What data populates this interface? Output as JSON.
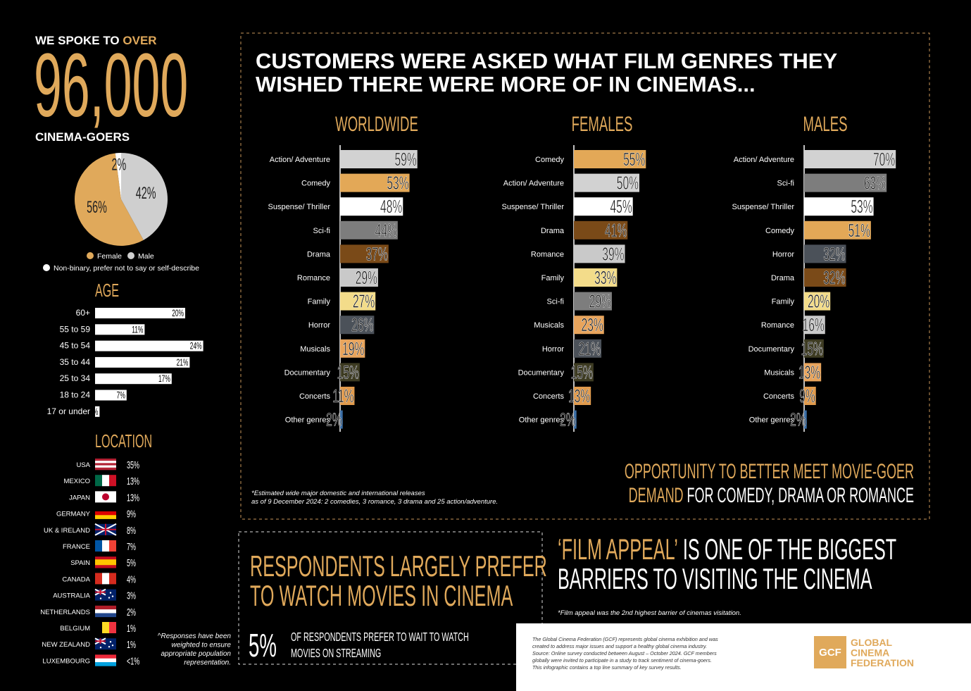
{
  "intro": {
    "lead": "WE SPOKE TO",
    "lead_accent": "OVER",
    "count": "96,000",
    "subject": "CINEMA-GOERS"
  },
  "gender": {
    "type": "pie",
    "categories": [
      "Female",
      "Male",
      "Non-binary, prefer not to say or self-describe"
    ],
    "values": [
      56,
      42,
      2
    ],
    "value_labels": [
      "56%",
      "42%",
      "2%"
    ],
    "colors": [
      "#e0a95b",
      "#cfcfcf",
      "#ffffff"
    ]
  },
  "age": {
    "type": "bar",
    "title": "AGE",
    "categories": [
      "60+",
      "55 to 59",
      "45 to 54",
      "35 to 44",
      "25 to 34",
      "18 to 24",
      "17 or under"
    ],
    "values": [
      20,
      11,
      24,
      21,
      17,
      7,
      1
    ],
    "value_labels": [
      "20%",
      "11%",
      "24%",
      "21%",
      "17%",
      "7%",
      "1%"
    ],
    "color": "#ffffff"
  },
  "location": {
    "title": "LOCATION",
    "rows": [
      [
        "USA",
        "35%"
      ],
      [
        "MEXICO",
        "13%"
      ],
      [
        "JAPAN",
        "13%"
      ],
      [
        "GERMANY",
        "9%"
      ],
      [
        "UK & IRELAND",
        "8%"
      ],
      [
        "FRANCE",
        "7%"
      ],
      [
        "SPAIN",
        "5%"
      ],
      [
        "CANADA",
        "4%"
      ],
      [
        "AUSTRALIA",
        "3%"
      ],
      [
        "NETHERLANDS",
        "2%"
      ],
      [
        "BELGIUM",
        "1%"
      ],
      [
        "NEW ZEALAND",
        "1%"
      ],
      [
        "LUXEMBOURG",
        "<1%"
      ]
    ],
    "note_lines": [
      "^Responses have been",
      "weighted to ensure",
      "appropriate population",
      "representation."
    ]
  },
  "genres": {
    "title_lines": [
      "CUSTOMERS WERE ASKED WHAT FILM GENRES THEY",
      "WISHED THERE WERE MORE OF IN CINEMAS..."
    ],
    "panels": [
      {
        "type": "bar",
        "title": "WORLDWIDE",
        "categories": [
          "Action/ Adventure",
          "Comedy",
          "Suspense/ Thriller",
          "Sci-fi",
          "Drama",
          "Romance",
          "Family",
          "Horror",
          "Musicals",
          "Documentary",
          "Concerts",
          "Other genres"
        ],
        "values": [
          59,
          53,
          48,
          44,
          37,
          29,
          27,
          26,
          19,
          15,
          11,
          2
        ],
        "value_labels": [
          "59%",
          "53%",
          "48%",
          "44%",
          "37%",
          "29%",
          "27%",
          "26%",
          "19%",
          "15%",
          "11%",
          "2%"
        ],
        "colors": [
          "#d2d2d2",
          "#e3a857",
          "#ffffff",
          "#7d7d7d",
          "#7a4a18",
          "#c9c9c9",
          "#f3dc8a",
          "#4b5159",
          "#e8a45c",
          "#3d3b22",
          "#e09a4c",
          "#3b6ea5"
        ]
      },
      {
        "type": "bar",
        "title": "FEMALES",
        "categories": [
          "Comedy",
          "Action/ Adventure",
          "Suspense/ Thriller",
          "Drama",
          "Romance",
          "Family",
          "Sci-fi",
          "Musicals",
          "Horror",
          "Documentary",
          "Concerts",
          "Other genres"
        ],
        "values": [
          55,
          50,
          45,
          41,
          39,
          33,
          29,
          23,
          21,
          15,
          13,
          2
        ],
        "value_labels": [
          "55%",
          "50%",
          "45%",
          "41%",
          "39%",
          "33%",
          "29%",
          "23%",
          "21%",
          "15%",
          "13%",
          "2%"
        ],
        "colors": [
          "#e3a857",
          "#d2d2d2",
          "#ffffff",
          "#7a4a18",
          "#c9c9c9",
          "#f3dc8a",
          "#7d7d7d",
          "#e8a45c",
          "#4b5159",
          "#3d3b22",
          "#e09a4c",
          "#3b6ea5"
        ]
      },
      {
        "type": "bar",
        "title": "MALES",
        "categories": [
          "Action/ Adventure",
          "Sci-fi",
          "Suspense/ Thriller",
          "Comedy",
          "Horror",
          "Drama",
          "Family",
          "Romance",
          "Documentary",
          "Musicals",
          "Concerts",
          "Other genres"
        ],
        "values": [
          70,
          63,
          53,
          51,
          32,
          32,
          20,
          16,
          15,
          13,
          9,
          2
        ],
        "value_labels": [
          "70%",
          "63%",
          "53%",
          "51%",
          "32%",
          "32%",
          "20%",
          "16%",
          "15%",
          "13%",
          "9%",
          "2%"
        ],
        "colors": [
          "#d2d2d2",
          "#7d7d7d",
          "#ffffff",
          "#e3a857",
          "#4b5159",
          "#7a4a18",
          "#f3dc8a",
          "#c9c9c9",
          "#3d3b22",
          "#e8a45c",
          "#e09a4c",
          "#3b6ea5"
        ]
      }
    ],
    "footnote_lines": [
      "*Estimated wide major domestic and international releases",
      "as of 9 December 2024: 2 comedies, 3 romance, 3 drama and 25 action/adventure."
    ],
    "conclusion": {
      "line1": "OPPORTUNITY TO BETTER MEET MOVIE-GOER",
      "line2_accent": "DEMAND",
      "line2": "FOR COMEDY, DRAMA OR ROMANCE"
    }
  },
  "streaming": {
    "headline_lines": [
      "RESPONDENTS LARGELY PREFER",
      "TO WATCH MOVIES IN CINEMA"
    ],
    "share": "5%",
    "text_lines": [
      "OF RESPONDENTS PREFER TO WAIT TO WATCH",
      "MOVIES ON STREAMING"
    ]
  },
  "film_appeal": {
    "accent": "‘FILM APPEAL’",
    "line1": "IS ONE OF THE BIGGEST",
    "line2": "BARRIERS TO VISITING THE CINEMA",
    "note": "*Film appeal was the 2nd highest barrier of cinemas visitation."
  },
  "footer": {
    "about_lines": [
      "The Global Cinema Federation (GCF) represents global cinema exhibition and was",
      "created to address major issues and support a healthy global cinema industry.",
      "Source: Online survey conducted between August – October 2024. GCF members",
      "globally were invited to participate in a study to track sentiment of cinema-goers.",
      "This infographic contains a top line summary of key survey results."
    ],
    "logo": "GCF",
    "org_lines": [
      "GLOBAL",
      "CINEMA",
      "FEDERATION"
    ]
  }
}
